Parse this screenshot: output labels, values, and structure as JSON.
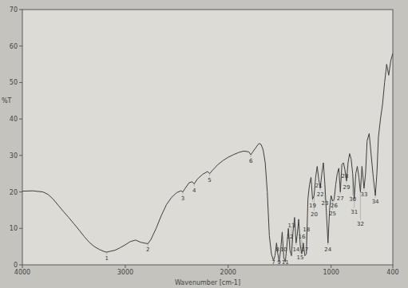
{
  "chart_data": {
    "type": "line",
    "xlabel": "Wavenumber [cm-1]",
    "ylabel": "%T",
    "x": [
      4000,
      3900,
      3800,
      3750,
      3700,
      3650,
      3600,
      3550,
      3500,
      3450,
      3400,
      3350,
      3300,
      3250,
      3200,
      3180,
      3150,
      3100,
      3050,
      3000,
      2950,
      2900,
      2850,
      2800,
      2780,
      2750,
      2700,
      2650,
      2600,
      2550,
      2500,
      2460,
      2440,
      2420,
      2380,
      2350,
      2330,
      2300,
      2250,
      2200,
      2180,
      2150,
      2100,
      2050,
      2000,
      1950,
      1900,
      1850,
      1800,
      1780,
      1760,
      1720,
      1700,
      1680,
      1660,
      1640,
      1620,
      1600,
      1580,
      1560,
      1545,
      1530,
      1520,
      1505,
      1490,
      1475,
      1460,
      1445,
      1430,
      1415,
      1400,
      1385,
      1370,
      1355,
      1340,
      1330,
      1315,
      1300,
      1285,
      1270,
      1255,
      1240,
      1225,
      1210,
      1195,
      1180,
      1165,
      1150,
      1135,
      1120,
      1105,
      1090,
      1075,
      1060,
      1045,
      1030,
      1015,
      1000,
      985,
      970,
      955,
      940,
      925,
      910,
      895,
      880,
      865,
      850,
      835,
      820,
      805,
      790,
      775,
      760,
      745,
      730,
      715,
      700,
      680,
      665,
      650,
      630,
      610,
      590,
      570,
      555,
      540,
      520,
      500,
      480,
      460,
      440,
      420,
      400
    ],
    "values": [
      20.2,
      20.3,
      20.0,
      19.3,
      18.0,
      16.3,
      14.6,
      13.0,
      11.3,
      9.6,
      7.8,
      6.2,
      5.0,
      4.2,
      3.6,
      3.5,
      3.7,
      4.0,
      4.7,
      5.5,
      6.4,
      6.8,
      6.2,
      5.9,
      5.8,
      7.0,
      10.0,
      13.5,
      16.5,
      18.5,
      19.8,
      20.3,
      20.0,
      20.9,
      22.5,
      22.8,
      22.2,
      23.5,
      24.8,
      25.6,
      25.0,
      26.0,
      27.5,
      28.6,
      29.5,
      30.2,
      30.8,
      31.2,
      31.0,
      30.2,
      31.0,
      32.6,
      33.3,
      33.0,
      31.5,
      28.0,
      20,
      8,
      3,
      1.2,
      2.5,
      6,
      3.5,
      1.0,
      4,
      9,
      2,
      0.8,
      5,
      10,
      4,
      2.5,
      9,
      13,
      6,
      8,
      12.5,
      5.5,
      3,
      6,
      2.5,
      3,
      18,
      22,
      24,
      18,
      19,
      24,
      27,
      23.5,
      21,
      25,
      28,
      22,
      14,
      6,
      15,
      19,
      17.5,
      18,
      22,
      25,
      26.5,
      20,
      27.5,
      28,
      26,
      23,
      28,
      30.5,
      29,
      25,
      18,
      25,
      27,
      24,
      20,
      27,
      21,
      25,
      34,
      36,
      30,
      24,
      19,
      25,
      35,
      40,
      44,
      50,
      55,
      52,
      56,
      58
    ],
    "color": "#3e3e3e",
    "xlim": [
      4000,
      400
    ],
    "ylim": [
      0,
      70
    ],
    "xticks": [
      4000,
      3000,
      2000,
      1000,
      400
    ],
    "yticks": [
      0,
      10,
      20,
      30,
      40,
      50,
      60,
      70
    ],
    "grid": false,
    "annotations": [
      {
        "text": "1",
        "x": 3180,
        "y": 3.5
      },
      {
        "text": "2",
        "x": 2780,
        "y": 5.8
      },
      {
        "text": "3",
        "x": 2440,
        "y": 20.0
      },
      {
        "text": "4",
        "x": 2330,
        "y": 22.2
      },
      {
        "text": "5",
        "x": 2180,
        "y": 25.0
      },
      {
        "text": "6",
        "x": 1780,
        "y": 30.2
      },
      {
        "text": "7",
        "x": 1560,
        "y": 1.2
      },
      {
        "text": "8",
        "x": 1520,
        "y": 3.5
      },
      {
        "text": "9",
        "x": 1505,
        "y": 1.0
      },
      {
        "text": "10",
        "x": 1460,
        "y": 2
      },
      {
        "text": "11",
        "x": 1445,
        "y": 0.8
      },
      {
        "text": "12",
        "x": 1400,
        "y": 4
      },
      {
        "text": "13",
        "x": 1385,
        "y": 2.5
      },
      {
        "text": "14",
        "x": 1340,
        "y": 6
      },
      {
        "text": "15",
        "x": 1300,
        "y": 5.5
      },
      {
        "text": "16",
        "x": 1285,
        "y": 3
      },
      {
        "text": "17",
        "x": 1255,
        "y": 2.5
      },
      {
        "text": "18",
        "x": 1240,
        "y": 3
      },
      {
        "text": "19",
        "x": 1180,
        "y": 18
      },
      {
        "text": "20",
        "x": 1165,
        "y": 19
      },
      {
        "text": "21",
        "x": 1120,
        "y": 23.5
      },
      {
        "text": "22",
        "x": 1105,
        "y": 21
      },
      {
        "text": "23",
        "x": 1060,
        "y": 22
      },
      {
        "text": "24",
        "x": 1030,
        "y": 6
      },
      {
        "text": "25",
        "x": 985,
        "y": 17.5
      },
      {
        "text": "26",
        "x": 970,
        "y": 18
      },
      {
        "text": "27",
        "x": 910,
        "y": 20
      },
      {
        "text": "28",
        "x": 865,
        "y": 26
      },
      {
        "text": "29",
        "x": 850,
        "y": 23
      },
      {
        "text": "30",
        "x": 790,
        "y": 25
      },
      {
        "text": "31",
        "x": 775,
        "y": 18
      },
      {
        "text": "32",
        "x": 715,
        "y": 20
      },
      {
        "text": "33",
        "x": 680,
        "y": 21
      },
      {
        "text": "34",
        "x": 570,
        "y": 19
      }
    ]
  }
}
